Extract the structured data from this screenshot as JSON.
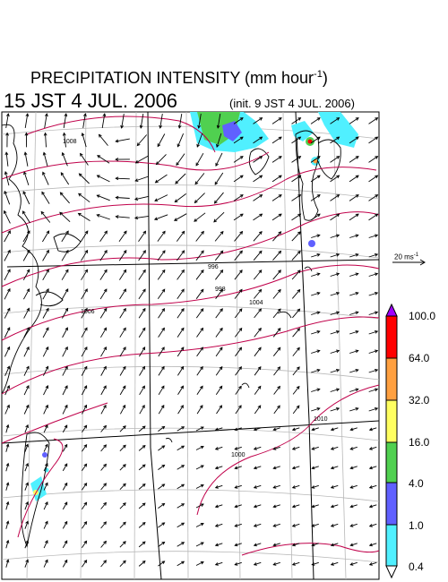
{
  "title": "PRECIPITATION INTENSITY (mm hour",
  "title_sup": "-1",
  "title_close": ")",
  "valid_time": "15 JST 4 JUL. 2006",
  "init_time": "(init. 9 JST 4 JUL. 2006)",
  "reference_vector": {
    "label": "20 ms",
    "unit_sup": "-1"
  },
  "colorbar": {
    "levels": [
      "100.0",
      "64.0",
      "32.0",
      "16.0",
      "4.0",
      "1.0",
      "0.4"
    ],
    "colors": [
      "#a000ff",
      "#ff0000",
      "#ffa040",
      "#ffff60",
      "#50d050",
      "#6060ff",
      "#50f0ff",
      "#ffffff"
    ]
  },
  "isobar_labels": [
    "996",
    "998",
    "1004",
    "1006",
    "1008",
    "1000",
    "1010"
  ],
  "colors": {
    "isobar": "#c0004a",
    "coast": "#000000",
    "grid": "#b8b8b8",
    "vector": "#000000"
  }
}
